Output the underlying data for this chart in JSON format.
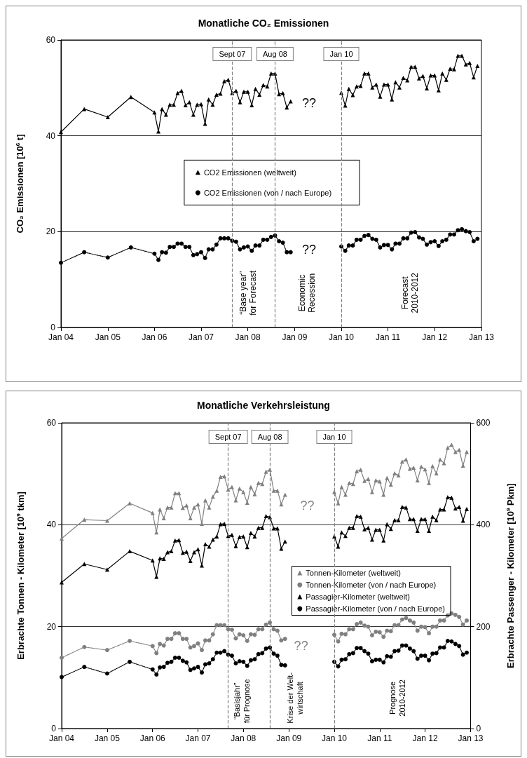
{
  "chart_data": [
    {
      "type": "line",
      "title": "Monatliche CO₂ Emissionen",
      "ylabel": "CO₂ Emissionen [10$^{6}$ t]",
      "x": [
        "2004-01",
        "2004-07",
        "2005-01",
        "2005-07",
        "2006-01",
        "2006-02",
        "2006-03",
        "2006-04",
        "2006-05",
        "2006-06",
        "2006-07",
        "2006-08",
        "2006-09",
        "2006-10",
        "2006-11",
        "2006-12",
        "2007-01",
        "2007-02",
        "2007-03",
        "2007-04",
        "2007-05",
        "2007-06",
        "2007-07",
        "2007-08",
        "2007-09",
        "2007-10",
        "2007-11",
        "2007-12",
        "2008-01",
        "2008-02",
        "2008-03",
        "2008-04",
        "2008-05",
        "2008-06",
        "2008-07",
        "2008-08",
        "2008-09",
        "2008-10",
        "2008-11",
        "2008-12",
        "2009-06",
        "2010-01",
        "2010-02",
        "2010-03",
        "2010-04",
        "2010-05",
        "2010-06",
        "2010-07",
        "2010-08",
        "2010-09",
        "2010-10",
        "2010-11",
        "2010-12",
        "2011-01",
        "2011-02",
        "2011-03",
        "2011-04",
        "2011-05",
        "2011-06",
        "2011-07",
        "2011-08",
        "2011-09",
        "2011-10",
        "2011-11",
        "2011-12",
        "2012-01",
        "2012-02",
        "2012-03",
        "2012-04",
        "2012-05",
        "2012-06",
        "2012-07",
        "2012-08",
        "2012-09",
        "2012-10",
        "2012-11",
        "2012-12"
      ],
      "series": [
        {
          "name": "CO2 Emissionen (weltweit)",
          "color": "#000000",
          "marker": "triangle",
          "line_style": "solid",
          "values": [
            40.8,
            45.6,
            43.9,
            48.1,
            44.9,
            40.9,
            45.6,
            44.4,
            46.5,
            46.5,
            48.9,
            49.4,
            46.4,
            47.0,
            44.4,
            46.5,
            46.6,
            42.5,
            47.6,
            46.5,
            48.6,
            48.8,
            51.4,
            51.7,
            48.9,
            49.4,
            47.0,
            49.2,
            49.2,
            46.4,
            49.8,
            48.6,
            50.6,
            50.3,
            53.0,
            53.0,
            48.7,
            48.9,
            45.9,
            47.2,
            null,
            49.0,
            46.3,
            49.8,
            48.5,
            50.3,
            50.4,
            53.0,
            53.0,
            50.1,
            50.7,
            48.2,
            50.7,
            50.7,
            47.6,
            51.2,
            50.1,
            52.1,
            51.6,
            54.4,
            54.4,
            52.0,
            52.5,
            49.9,
            52.6,
            52.6,
            49.5,
            53.0,
            51.7,
            54.0,
            53.9,
            56.7,
            56.7,
            54.9,
            55.2,
            52.2,
            54.6
          ]
        },
        {
          "name": "CO2 Emissionen (von / nach Europe)",
          "color": "#000000",
          "marker": "circle",
          "line_style": "dotted",
          "values": [
            13.5,
            15.7,
            14.6,
            16.7,
            15.4,
            14.1,
            15.7,
            15.6,
            16.8,
            16.8,
            17.5,
            17.5,
            16.8,
            16.8,
            15.1,
            15.3,
            15.7,
            14.5,
            16.3,
            16.3,
            17.3,
            18.6,
            18.6,
            18.6,
            18.1,
            17.9,
            16.3,
            16.7,
            16.9,
            16.0,
            17.1,
            17.1,
            18.3,
            18.3,
            18.9,
            19.2,
            18.0,
            17.7,
            15.7,
            15.7,
            null,
            16.9,
            16.0,
            17.1,
            17.1,
            18.3,
            18.3,
            19.1,
            19.3,
            18.5,
            18.3,
            16.7,
            17.2,
            17.2,
            16.3,
            17.5,
            17.5,
            18.6,
            18.6,
            19.8,
            19.9,
            18.8,
            18.5,
            17.3,
            17.8,
            18.0,
            17.0,
            18.0,
            18.3,
            19.4,
            19.4,
            20.3,
            20.5,
            20.1,
            19.9,
            18.0,
            18.5
          ]
        }
      ],
      "xlim": [
        "2004-01",
        "2013-01"
      ],
      "xticks": [
        {
          "value": "2004-01",
          "label": "Jan 04"
        },
        {
          "value": "2005-01",
          "label": "Jan 05"
        },
        {
          "value": "2006-01",
          "label": "Jan 06"
        },
        {
          "value": "2007-01",
          "label": "Jan 07"
        },
        {
          "value": "2008-01",
          "label": "Jan 08"
        },
        {
          "value": "2009-01",
          "label": "Jan 09"
        },
        {
          "value": "2010-01",
          "label": "Jan 10"
        },
        {
          "value": "2011-01",
          "label": "Jan 11"
        },
        {
          "value": "2012-01",
          "label": "Jan 12"
        },
        {
          "value": "2013-01",
          "label": "Jan 13"
        }
      ],
      "ylim": [
        0,
        60
      ],
      "yticks": [
        0,
        20,
        40,
        60
      ],
      "grid": "y",
      "legend": "center",
      "ref_lines": [
        {
          "axis": "x",
          "value": "2007-09",
          "label": "Sept 07",
          "color": "#808080",
          "line_style": "dashed"
        },
        {
          "axis": "x",
          "value": "2008-08",
          "label": "Aug 08",
          "color": "#808080",
          "line_style": "dashed"
        },
        {
          "axis": "x",
          "value": "2010-01",
          "label": "Jan 10",
          "color": "#808080",
          "line_style": "dashed"
        }
      ],
      "annotations": [
        "“Base year”\nfor Forecast",
        "Economic\nRecession",
        "Forecast\n2010-2012",
        "??",
        "??"
      ]
    },
    {
      "type": "line",
      "title": "Monatliche Verkehrsleistung",
      "ylabel": "Erbrachte Tonnen - Kilometer [10$^{9}$ tkm]",
      "y2label": "Erbrachte Passenger - Kilometer [10$^{9}$ Pkm]",
      "x": [
        "2004-01",
        "2004-07",
        "2005-01",
        "2005-07",
        "2006-01",
        "2006-02",
        "2006-03",
        "2006-04",
        "2006-05",
        "2006-06",
        "2006-07",
        "2006-08",
        "2006-09",
        "2006-10",
        "2006-11",
        "2006-12",
        "2007-01",
        "2007-02",
        "2007-03",
        "2007-04",
        "2007-05",
        "2007-06",
        "2007-07",
        "2007-08",
        "2007-09",
        "2007-10",
        "2007-11",
        "2007-12",
        "2008-01",
        "2008-02",
        "2008-03",
        "2008-04",
        "2008-05",
        "2008-06",
        "2008-07",
        "2008-08",
        "2008-09",
        "2008-10",
        "2008-11",
        "2008-12",
        "2009-06",
        "2010-01",
        "2010-02",
        "2010-03",
        "2010-04",
        "2010-05",
        "2010-06",
        "2010-07",
        "2010-08",
        "2010-09",
        "2010-10",
        "2010-11",
        "2010-12",
        "2011-01",
        "2011-02",
        "2011-03",
        "2011-04",
        "2011-05",
        "2011-06",
        "2011-07",
        "2011-08",
        "2011-09",
        "2011-10",
        "2011-11",
        "2011-12",
        "2012-01",
        "2012-02",
        "2012-03",
        "2012-04",
        "2012-05",
        "2012-06",
        "2012-07",
        "2012-08",
        "2012-09",
        "2012-10",
        "2012-11",
        "2012-12"
      ],
      "series": [
        {
          "name": "Tonnen-Kilometer (weltweit)",
          "color": "#808080",
          "marker": "triangle",
          "line_style": "solid",
          "values": [
            37.3,
            41.0,
            40.8,
            44.2,
            42.3,
            38.5,
            43.0,
            41.3,
            43.4,
            43.4,
            46.2,
            46.2,
            43.3,
            43.8,
            41.3,
            43.4,
            44.0,
            40.2,
            44.8,
            43.4,
            45.5,
            46.7,
            49.4,
            49.5,
            46.9,
            47.4,
            44.8,
            47.1,
            46.4,
            44.3,
            47.4,
            46.0,
            48.2,
            48.0,
            50.4,
            50.8,
            46.7,
            46.7,
            44.0,
            45.9,
            null,
            46.4,
            44.2,
            47.4,
            45.9,
            48.2,
            48.0,
            50.5,
            50.8,
            48.6,
            49.0,
            46.4,
            48.7,
            48.5,
            45.9,
            49.2,
            47.9,
            50.1,
            49.7,
            52.4,
            52.8,
            51.0,
            51.2,
            48.7,
            51.4,
            50.9,
            48.2,
            51.5,
            50.1,
            52.8,
            52.1,
            55.1,
            55.7,
            54.3,
            54.7,
            51.6,
            54.3
          ]
        },
        {
          "name": "Tonnen-Kilometer (von / nach Europe)",
          "color": "#808080",
          "marker": "circle",
          "line_style": "dotted",
          "values": [
            13.9,
            16.0,
            15.4,
            17.2,
            16.2,
            14.8,
            16.6,
            16.3,
            17.6,
            17.6,
            18.7,
            18.7,
            17.6,
            17.6,
            15.9,
            16.2,
            16.7,
            15.4,
            17.3,
            17.3,
            18.5,
            20.3,
            20.3,
            20.3,
            19.5,
            19.4,
            17.7,
            18.5,
            18.3,
            17.2,
            18.5,
            18.4,
            19.5,
            19.5,
            20.4,
            20.8,
            19.5,
            19.2,
            17.3,
            17.6,
            null,
            18.4,
            17.1,
            18.6,
            18.5,
            19.5,
            19.5,
            20.5,
            20.8,
            20.2,
            20.0,
            18.3,
            19.0,
            18.9,
            18.0,
            19.2,
            19.1,
            20.3,
            20.3,
            21.4,
            21.7,
            21.2,
            20.8,
            19.2,
            20.0,
            19.9,
            18.7,
            20.0,
            20.0,
            21.2,
            21.2,
            22.2,
            22.6,
            22.3,
            21.9,
            20.4,
            21.2
          ]
        },
        {
          "name": "Passagier-Kilometer (weltweit)",
          "color": "#000000",
          "marker": "triangle",
          "line_style": "solid",
          "axis": "y2",
          "values": [
            287,
            323,
            312,
            348,
            330,
            298,
            334,
            333,
            346,
            348,
            369,
            370,
            345,
            347,
            329,
            346,
            352,
            320,
            362,
            357,
            371,
            377,
            401,
            402,
            378,
            380,
            358,
            376,
            377,
            356,
            384,
            377,
            394,
            394,
            417,
            415,
            393,
            393,
            353,
            367,
            null,
            377,
            357,
            385,
            378,
            394,
            394,
            417,
            416,
            391,
            394,
            371,
            390,
            390,
            369,
            401,
            392,
            409,
            409,
            435,
            434,
            411,
            411,
            388,
            411,
            411,
            388,
            416,
            409,
            430,
            430,
            454,
            453,
            432,
            435,
            408,
            431
          ]
        },
        {
          "name": "Passagier-Kilometer (von / nach Europe)",
          "color": "#000000",
          "marker": "circle",
          "line_style": "dotted",
          "axis": "y2",
          "values": [
            101,
            121,
            108,
            131,
            116,
            106,
            120,
            121,
            129,
            131,
            139,
            139,
            133,
            130,
            115,
            118,
            121,
            110,
            126,
            128,
            136,
            149,
            149,
            152,
            145,
            143,
            128,
            132,
            131,
            123,
            134,
            136,
            146,
            148,
            157,
            159,
            147,
            143,
            125,
            124,
            null,
            131,
            122,
            135,
            136,
            146,
            148,
            158,
            158,
            152,
            147,
            132,
            135,
            135,
            130,
            142,
            141,
            152,
            153,
            163,
            163,
            157,
            152,
            137,
            143,
            143,
            134,
            147,
            148,
            159,
            159,
            172,
            171,
            166,
            162,
            145,
            149
          ]
        }
      ],
      "xlim": [
        "2004-01",
        "2013-01"
      ],
      "xticks": [
        {
          "value": "2004-01",
          "label": "Jan 04"
        },
        {
          "value": "2005-01",
          "label": "Jan 05"
        },
        {
          "value": "2006-01",
          "label": "Jan 06"
        },
        {
          "value": "2007-01",
          "label": "Jan 07"
        },
        {
          "value": "2008-01",
          "label": "Jan 08"
        },
        {
          "value": "2009-01",
          "label": "Jan 09"
        },
        {
          "value": "2010-01",
          "label": "Jan 10"
        },
        {
          "value": "2011-01",
          "label": "Jan 11"
        },
        {
          "value": "2012-01",
          "label": "Jan 12"
        },
        {
          "value": "2013-01",
          "label": "Jan 13"
        }
      ],
      "ylim": [
        0,
        60
      ],
      "yticks": [
        0,
        20,
        40,
        60
      ],
      "y2lim": [
        0,
        600
      ],
      "y2ticks": [
        0,
        200,
        400,
        600
      ],
      "grid": "y",
      "legend": "center right",
      "ref_lines": [
        {
          "axis": "x",
          "value": "2007-09",
          "label": "Sept 07",
          "color": "#808080",
          "line_style": "dashed"
        },
        {
          "axis": "x",
          "value": "2008-08",
          "label": "Aug 08",
          "color": "#808080",
          "line_style": "dashed"
        },
        {
          "axis": "x",
          "value": "2010-01",
          "label": "Jan 10",
          "color": "#808080",
          "line_style": "dashed"
        }
      ],
      "annotations": [
        "“Basisjahr”\nfür Prognose",
        "Krise der Welt-\nwirtschaft",
        "Prognose\n2010-2012",
        "??",
        "??"
      ]
    }
  ]
}
